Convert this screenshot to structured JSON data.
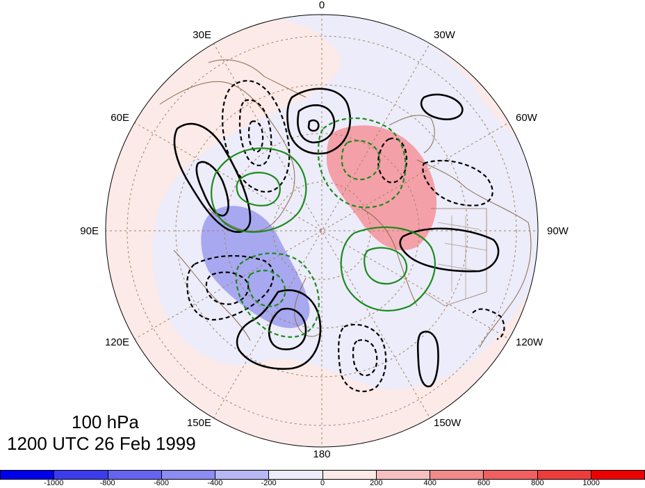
{
  "map": {
    "projection": "north-polar-stereographic",
    "longitude_labels": [
      "0",
      "30W",
      "60W",
      "90W",
      "120W",
      "150W",
      "180",
      "150E",
      "120E",
      "90E",
      "60E",
      "30E"
    ],
    "colors": {
      "coastline": "#8a6a4a",
      "gridline": "#a08060",
      "positive_contour": "#000000",
      "negative_contour": "#000000",
      "green_contour": "#1a8a1a",
      "positive_shading": "#f4a0a8",
      "negative_shading": "#a8a8f0",
      "ocean_light_pink": "#fbeae8",
      "ocean_light_blue": "#ececfa"
    }
  },
  "title": {
    "level": "100 hPa",
    "time": "1200 UTC 26 Feb 1999"
  },
  "colorbar": {
    "labels": [
      "-1000",
      "-800",
      "-600",
      "-400",
      "-200",
      "0",
      "200",
      "400",
      "600",
      "800",
      "1000"
    ],
    "colors": [
      "#0000ee",
      "#3c3cef",
      "#6464f0",
      "#8c8cf2",
      "#b8b8f6",
      "#ececfa",
      "#fbeae8",
      "#f6c0c0",
      "#f28a8a",
      "#f06060",
      "#ee3c3c",
      "#ee0000"
    ]
  }
}
